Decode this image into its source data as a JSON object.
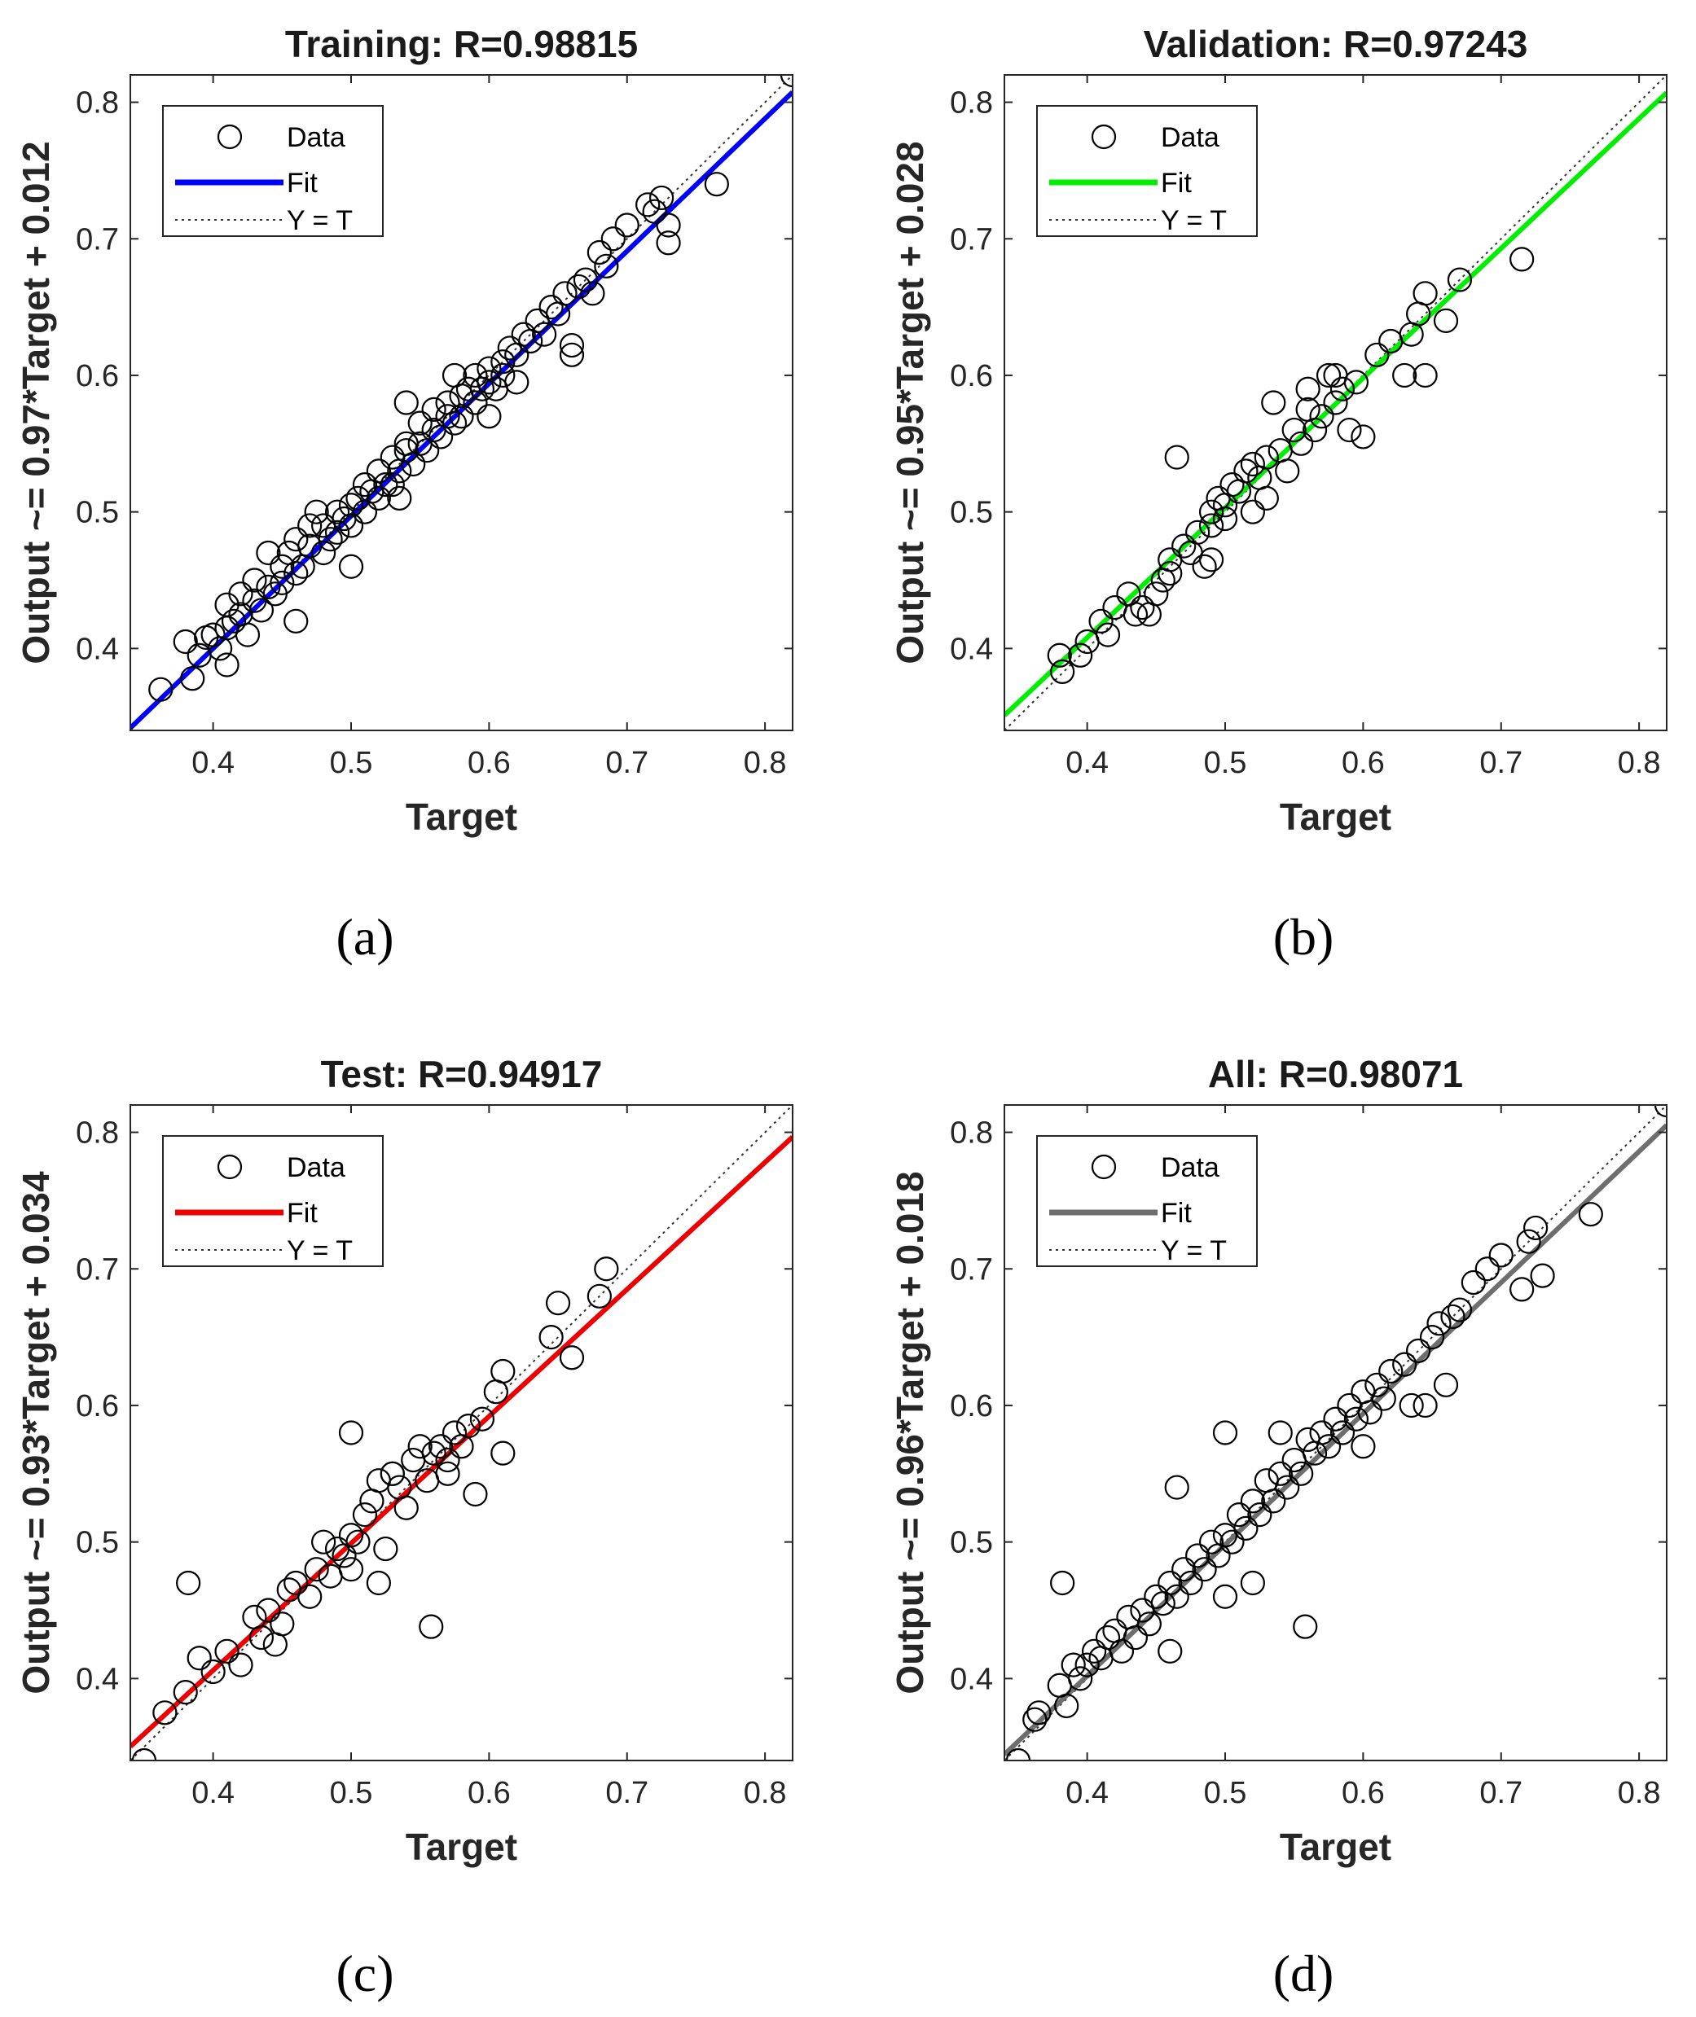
{
  "chart_data": [
    {
      "type": "scatter",
      "title": "Training: R=0.98815",
      "xlabel": "Target",
      "ylabel": "Output ~= 0.97*Target + 0.012",
      "caption": "(a)",
      "xlim": [
        0.34,
        0.82
      ],
      "ylim": [
        0.34,
        0.82
      ],
      "xticks": [
        0.4,
        0.5,
        0.6,
        0.7,
        0.8
      ],
      "yticks": [
        0.4,
        0.5,
        0.6,
        0.7,
        0.8
      ],
      "xtick_labels": [
        "0.4",
        "0.5",
        "0.6",
        "0.7",
        "0.8"
      ],
      "ytick_labels": [
        "0.4",
        "0.5",
        "0.6",
        "0.7",
        "0.8"
      ],
      "fit": {
        "slope": 0.97,
        "intercept": 0.012,
        "color": "#0000ff"
      },
      "legend": {
        "position": "top-left",
        "entries": [
          "Data",
          "Fit",
          "Y = T"
        ]
      },
      "points": [
        [
          0.362,
          0.37
        ],
        [
          0.38,
          0.405
        ],
        [
          0.385,
          0.378
        ],
        [
          0.39,
          0.395
        ],
        [
          0.395,
          0.408
        ],
        [
          0.4,
          0.41
        ],
        [
          0.405,
          0.4
        ],
        [
          0.41,
          0.415
        ],
        [
          0.41,
          0.432
        ],
        [
          0.415,
          0.42
        ],
        [
          0.42,
          0.44
        ],
        [
          0.42,
          0.425
        ],
        [
          0.425,
          0.41
        ],
        [
          0.43,
          0.435
        ],
        [
          0.43,
          0.45
        ],
        [
          0.435,
          0.428
        ],
        [
          0.44,
          0.445
        ],
        [
          0.44,
          0.47
        ],
        [
          0.445,
          0.44
        ],
        [
          0.45,
          0.46
        ],
        [
          0.45,
          0.448
        ],
        [
          0.455,
          0.47
        ],
        [
          0.46,
          0.455
        ],
        [
          0.46,
          0.48
        ],
        [
          0.465,
          0.46
        ],
        [
          0.47,
          0.475
        ],
        [
          0.47,
          0.49
        ],
        [
          0.475,
          0.5
        ],
        [
          0.48,
          0.47
        ],
        [
          0.48,
          0.49
        ],
        [
          0.485,
          0.48
        ],
        [
          0.49,
          0.5
        ],
        [
          0.49,
          0.485
        ],
        [
          0.495,
          0.495
        ],
        [
          0.5,
          0.505
        ],
        [
          0.5,
          0.49
        ],
        [
          0.505,
          0.51
        ],
        [
          0.51,
          0.5
        ],
        [
          0.51,
          0.52
        ],
        [
          0.515,
          0.515
        ],
        [
          0.52,
          0.51
        ],
        [
          0.52,
          0.53
        ],
        [
          0.525,
          0.52
        ],
        [
          0.53,
          0.54
        ],
        [
          0.53,
          0.52
        ],
        [
          0.535,
          0.53
        ],
        [
          0.54,
          0.545
        ],
        [
          0.54,
          0.55
        ],
        [
          0.545,
          0.535
        ],
        [
          0.55,
          0.55
        ],
        [
          0.55,
          0.565
        ],
        [
          0.555,
          0.545
        ],
        [
          0.56,
          0.56
        ],
        [
          0.56,
          0.575
        ],
        [
          0.565,
          0.555
        ],
        [
          0.57,
          0.57
        ],
        [
          0.57,
          0.58
        ],
        [
          0.575,
          0.565
        ],
        [
          0.58,
          0.585
        ],
        [
          0.58,
          0.57
        ],
        [
          0.585,
          0.59
        ],
        [
          0.59,
          0.58
        ],
        [
          0.59,
          0.6
        ],
        [
          0.595,
          0.59
        ],
        [
          0.6,
          0.605
        ],
        [
          0.6,
          0.595
        ],
        [
          0.605,
          0.59
        ],
        [
          0.61,
          0.61
        ],
        [
          0.61,
          0.6
        ],
        [
          0.615,
          0.62
        ],
        [
          0.62,
          0.615
        ],
        [
          0.625,
          0.63
        ],
        [
          0.63,
          0.625
        ],
        [
          0.635,
          0.64
        ],
        [
          0.64,
          0.63
        ],
        [
          0.645,
          0.65
        ],
        [
          0.65,
          0.645
        ],
        [
          0.655,
          0.66
        ],
        [
          0.66,
          0.615
        ],
        [
          0.66,
          0.622
        ],
        [
          0.665,
          0.665
        ],
        [
          0.67,
          0.67
        ],
        [
          0.675,
          0.66
        ],
        [
          0.68,
          0.69
        ],
        [
          0.685,
          0.68
        ],
        [
          0.69,
          0.7
        ],
        [
          0.7,
          0.71
        ],
        [
          0.715,
          0.725
        ],
        [
          0.72,
          0.72
        ],
        [
          0.725,
          0.73
        ],
        [
          0.73,
          0.697
        ],
        [
          0.73,
          0.71
        ],
        [
          0.765,
          0.74
        ],
        [
          0.82,
          0.82
        ],
        [
          0.46,
          0.42
        ],
        [
          0.41,
          0.388
        ],
        [
          0.5,
          0.46
        ],
        [
          0.54,
          0.58
        ],
        [
          0.535,
          0.51
        ],
        [
          0.575,
          0.6
        ],
        [
          0.6,
          0.57
        ],
        [
          0.62,
          0.595
        ]
      ]
    },
    {
      "type": "scatter",
      "title": "Validation: R=0.97243",
      "xlabel": "Target",
      "ylabel": "Output ~= 0.95*Target + 0.028",
      "caption": "(b)",
      "xlim": [
        0.34,
        0.82
      ],
      "ylim": [
        0.34,
        0.82
      ],
      "xticks": [
        0.4,
        0.5,
        0.6,
        0.7,
        0.8
      ],
      "yticks": [
        0.4,
        0.5,
        0.6,
        0.7,
        0.8
      ],
      "xtick_labels": [
        "0.4",
        "0.5",
        "0.6",
        "0.7",
        "0.8"
      ],
      "ytick_labels": [
        "0.4",
        "0.5",
        "0.6",
        "0.7",
        "0.8"
      ],
      "fit": {
        "slope": 0.95,
        "intercept": 0.028,
        "color": "#00ee00"
      },
      "legend": {
        "position": "top-left",
        "entries": [
          "Data",
          "Fit",
          "Y = T"
        ]
      },
      "points": [
        [
          0.38,
          0.395
        ],
        [
          0.382,
          0.383
        ],
        [
          0.395,
          0.395
        ],
        [
          0.4,
          0.405
        ],
        [
          0.41,
          0.42
        ],
        [
          0.415,
          0.41
        ],
        [
          0.42,
          0.43
        ],
        [
          0.43,
          0.44
        ],
        [
          0.435,
          0.425
        ],
        [
          0.44,
          0.43
        ],
        [
          0.445,
          0.425
        ],
        [
          0.45,
          0.44
        ],
        [
          0.455,
          0.45
        ],
        [
          0.46,
          0.455
        ],
        [
          0.46,
          0.465
        ],
        [
          0.465,
          0.54
        ],
        [
          0.47,
          0.475
        ],
        [
          0.475,
          0.47
        ],
        [
          0.48,
          0.485
        ],
        [
          0.485,
          0.46
        ],
        [
          0.49,
          0.49
        ],
        [
          0.49,
          0.5
        ],
        [
          0.495,
          0.51
        ],
        [
          0.5,
          0.505
        ],
        [
          0.5,
          0.495
        ],
        [
          0.505,
          0.52
        ],
        [
          0.51,
          0.515
        ],
        [
          0.515,
          0.53
        ],
        [
          0.52,
          0.535
        ],
        [
          0.525,
          0.525
        ],
        [
          0.53,
          0.54
        ],
        [
          0.53,
          0.51
        ],
        [
          0.535,
          0.58
        ],
        [
          0.54,
          0.545
        ],
        [
          0.545,
          0.53
        ],
        [
          0.55,
          0.56
        ],
        [
          0.555,
          0.55
        ],
        [
          0.56,
          0.575
        ],
        [
          0.56,
          0.59
        ],
        [
          0.565,
          0.56
        ],
        [
          0.57,
          0.57
        ],
        [
          0.575,
          0.6
        ],
        [
          0.58,
          0.58
        ],
        [
          0.585,
          0.59
        ],
        [
          0.59,
          0.56
        ],
        [
          0.595,
          0.595
        ],
        [
          0.6,
          0.555
        ],
        [
          0.61,
          0.615
        ],
        [
          0.62,
          0.625
        ],
        [
          0.63,
          0.6
        ],
        [
          0.635,
          0.63
        ],
        [
          0.64,
          0.645
        ],
        [
          0.645,
          0.66
        ],
        [
          0.645,
          0.6
        ],
        [
          0.66,
          0.64
        ],
        [
          0.67,
          0.67
        ],
        [
          0.715,
          0.685
        ],
        [
          0.49,
          0.465
        ],
        [
          0.52,
          0.5
        ],
        [
          0.58,
          0.6
        ]
      ]
    },
    {
      "type": "scatter",
      "title": "Test: R=0.94917",
      "xlabel": "Target",
      "ylabel": "Output ~= 0.93*Target + 0.034",
      "caption": "(c)",
      "xlim": [
        0.34,
        0.82
      ],
      "ylim": [
        0.34,
        0.82
      ],
      "xticks": [
        0.4,
        0.5,
        0.6,
        0.7,
        0.8
      ],
      "yticks": [
        0.4,
        0.5,
        0.6,
        0.7,
        0.8
      ],
      "xtick_labels": [
        "0.4",
        "0.5",
        "0.6",
        "0.7",
        "0.8"
      ],
      "ytick_labels": [
        "0.4",
        "0.5",
        "0.6",
        "0.7",
        "0.8"
      ],
      "fit": {
        "slope": 0.93,
        "intercept": 0.034,
        "color": "#ee0000"
      },
      "legend": {
        "position": "top-left",
        "entries": [
          "Data",
          "Fit",
          "Y = T"
        ]
      },
      "points": [
        [
          0.35,
          0.34
        ],
        [
          0.365,
          0.375
        ],
        [
          0.38,
          0.39
        ],
        [
          0.382,
          0.47
        ],
        [
          0.39,
          0.415
        ],
        [
          0.4,
          0.405
        ],
        [
          0.41,
          0.42
        ],
        [
          0.42,
          0.41
        ],
        [
          0.43,
          0.445
        ],
        [
          0.435,
          0.43
        ],
        [
          0.44,
          0.45
        ],
        [
          0.445,
          0.425
        ],
        [
          0.45,
          0.44
        ],
        [
          0.455,
          0.465
        ],
        [
          0.46,
          0.47
        ],
        [
          0.47,
          0.46
        ],
        [
          0.475,
          0.48
        ],
        [
          0.48,
          0.5
        ],
        [
          0.485,
          0.475
        ],
        [
          0.49,
          0.495
        ],
        [
          0.495,
          0.49
        ],
        [
          0.5,
          0.58
        ],
        [
          0.5,
          0.505
        ],
        [
          0.505,
          0.5
        ],
        [
          0.51,
          0.52
        ],
        [
          0.515,
          0.53
        ],
        [
          0.52,
          0.545
        ],
        [
          0.52,
          0.47
        ],
        [
          0.525,
          0.495
        ],
        [
          0.53,
          0.55
        ],
        [
          0.535,
          0.54
        ],
        [
          0.54,
          0.525
        ],
        [
          0.545,
          0.56
        ],
        [
          0.55,
          0.57
        ],
        [
          0.555,
          0.545
        ],
        [
          0.558,
          0.438
        ],
        [
          0.56,
          0.565
        ],
        [
          0.565,
          0.57
        ],
        [
          0.57,
          0.55
        ],
        [
          0.575,
          0.58
        ],
        [
          0.58,
          0.57
        ],
        [
          0.585,
          0.585
        ],
        [
          0.59,
          0.535
        ],
        [
          0.595,
          0.59
        ],
        [
          0.605,
          0.61
        ],
        [
          0.61,
          0.565
        ],
        [
          0.61,
          0.625
        ],
        [
          0.645,
          0.65
        ],
        [
          0.65,
          0.675
        ],
        [
          0.66,
          0.635
        ],
        [
          0.68,
          0.68
        ],
        [
          0.685,
          0.7
        ],
        [
          0.5,
          0.48
        ],
        [
          0.53,
          0.55
        ],
        [
          0.57,
          0.56
        ]
      ]
    },
    {
      "type": "scatter",
      "title": "All: R=0.98071",
      "xlabel": "Target",
      "ylabel": "Output ~= 0.96*Target + 0.018",
      "caption": "(d)",
      "xlim": [
        0.34,
        0.82
      ],
      "ylim": [
        0.34,
        0.82
      ],
      "xticks": [
        0.4,
        0.5,
        0.6,
        0.7,
        0.8
      ],
      "yticks": [
        0.4,
        0.5,
        0.6,
        0.7,
        0.8
      ],
      "xtick_labels": [
        "0.4",
        "0.5",
        "0.6",
        "0.7",
        "0.8"
      ],
      "ytick_labels": [
        "0.4",
        "0.5",
        "0.6",
        "0.7",
        "0.8"
      ],
      "fit": {
        "slope": 0.96,
        "intercept": 0.018,
        "color": "#6e6e6e"
      },
      "legend": {
        "position": "top-left",
        "entries": [
          "Data",
          "Fit",
          "Y = T"
        ]
      },
      "points": [
        [
          0.35,
          0.34
        ],
        [
          0.362,
          0.37
        ],
        [
          0.365,
          0.375
        ],
        [
          0.38,
          0.395
        ],
        [
          0.382,
          0.47
        ],
        [
          0.385,
          0.38
        ],
        [
          0.39,
          0.41
        ],
        [
          0.395,
          0.4
        ],
        [
          0.4,
          0.41
        ],
        [
          0.405,
          0.42
        ],
        [
          0.41,
          0.415
        ],
        [
          0.415,
          0.43
        ],
        [
          0.42,
          0.435
        ],
        [
          0.425,
          0.42
        ],
        [
          0.43,
          0.445
        ],
        [
          0.435,
          0.43
        ],
        [
          0.44,
          0.45
        ],
        [
          0.445,
          0.44
        ],
        [
          0.45,
          0.46
        ],
        [
          0.455,
          0.455
        ],
        [
          0.46,
          0.47
        ],
        [
          0.465,
          0.54
        ],
        [
          0.465,
          0.46
        ],
        [
          0.47,
          0.48
        ],
        [
          0.475,
          0.47
        ],
        [
          0.48,
          0.49
        ],
        [
          0.485,
          0.48
        ],
        [
          0.49,
          0.5
        ],
        [
          0.495,
          0.49
        ],
        [
          0.5,
          0.58
        ],
        [
          0.5,
          0.505
        ],
        [
          0.505,
          0.5
        ],
        [
          0.51,
          0.52
        ],
        [
          0.515,
          0.51
        ],
        [
          0.52,
          0.53
        ],
        [
          0.52,
          0.47
        ],
        [
          0.525,
          0.52
        ],
        [
          0.53,
          0.545
        ],
        [
          0.535,
          0.53
        ],
        [
          0.54,
          0.55
        ],
        [
          0.545,
          0.54
        ],
        [
          0.55,
          0.56
        ],
        [
          0.555,
          0.55
        ],
        [
          0.558,
          0.438
        ],
        [
          0.56,
          0.575
        ],
        [
          0.565,
          0.565
        ],
        [
          0.57,
          0.58
        ],
        [
          0.575,
          0.57
        ],
        [
          0.58,
          0.59
        ],
        [
          0.585,
          0.58
        ],
        [
          0.59,
          0.6
        ],
        [
          0.595,
          0.59
        ],
        [
          0.6,
          0.61
        ],
        [
          0.605,
          0.595
        ],
        [
          0.61,
          0.615
        ],
        [
          0.615,
          0.605
        ],
        [
          0.62,
          0.625
        ],
        [
          0.63,
          0.63
        ],
        [
          0.635,
          0.6
        ],
        [
          0.64,
          0.64
        ],
        [
          0.645,
          0.6
        ],
        [
          0.65,
          0.65
        ],
        [
          0.655,
          0.66
        ],
        [
          0.66,
          0.615
        ],
        [
          0.665,
          0.665
        ],
        [
          0.67,
          0.67
        ],
        [
          0.68,
          0.69
        ],
        [
          0.69,
          0.7
        ],
        [
          0.7,
          0.71
        ],
        [
          0.715,
          0.685
        ],
        [
          0.72,
          0.72
        ],
        [
          0.725,
          0.73
        ],
        [
          0.73,
          0.695
        ],
        [
          0.765,
          0.74
        ],
        [
          0.82,
          0.82
        ],
        [
          0.46,
          0.42
        ],
        [
          0.5,
          0.46
        ],
        [
          0.54,
          0.58
        ],
        [
          0.6,
          0.57
        ]
      ]
    }
  ]
}
